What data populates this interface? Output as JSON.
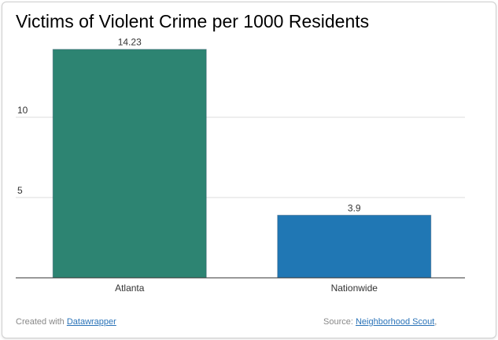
{
  "chart_data": {
    "type": "bar",
    "title": "Victims of Violent Crime per 1000 Residents",
    "categories": [
      "Atlanta",
      "Nationwide"
    ],
    "values": [
      14.23,
      3.9
    ],
    "value_labels": [
      "14.23",
      "3.9"
    ],
    "colors": [
      "#2d8472",
      "#2077b4"
    ],
    "yticks": [
      5,
      10
    ],
    "ylim": [
      0,
      15
    ],
    "grid": true,
    "xlabel": "",
    "ylabel": ""
  },
  "footer": {
    "created_with": "Created with",
    "created_link": "Datawrapper",
    "source_prefix": "Source:",
    "source_link": "Neighborhood Scout",
    "source_suffix": ","
  }
}
